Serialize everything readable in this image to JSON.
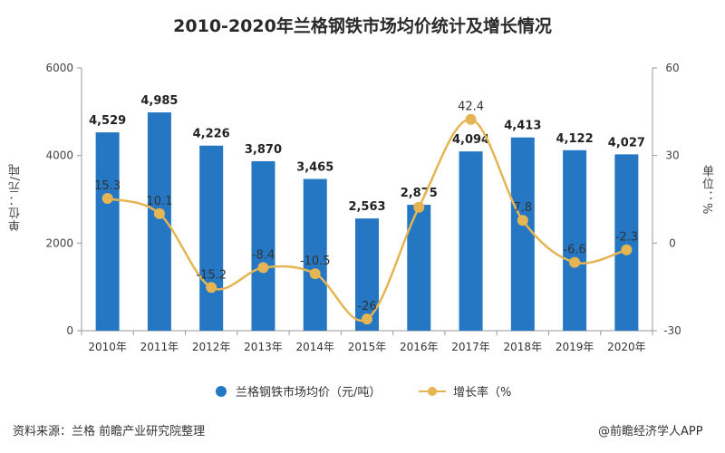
{
  "title": "2010-2020年兰格钢铁市场均价统计及增长情况",
  "ylabel_left": "单位：元/吨",
  "ylabel_right": "单位：%",
  "legend": {
    "bar_label": "兰格钢铁市场均价（元/吨）",
    "line_label": "增长率（%"
  },
  "source": "资料来源：兰格 前瞻产业研究院整理",
  "brand": "@前瞻经济学人APP",
  "colors": {
    "bar": "#2577c4",
    "line": "#e4b552",
    "marker": "#e4b552"
  },
  "chart_data": {
    "type": "bar",
    "categories": [
      "2010年",
      "2011年",
      "2012年",
      "2013年",
      "2014年",
      "2015年",
      "2016年",
      "2017年",
      "2018年",
      "2019年",
      "2020年"
    ],
    "series": [
      {
        "name": "兰格钢铁市场均价（元/吨）",
        "type": "bar",
        "axis": "left",
        "values": [
          4529,
          4985,
          4226,
          3870,
          3465,
          2563,
          2875,
          4094,
          4413,
          4122,
          4027
        ],
        "labels": [
          "4,529",
          "4,985",
          "4,226",
          "3,870",
          "3,465",
          "2,563",
          "2,875",
          "4,094",
          "4,413",
          "4,122",
          "4,027"
        ]
      },
      {
        "name": "增长率（%",
        "type": "line",
        "axis": "right",
        "values": [
          15.3,
          10.1,
          -15.2,
          -8.4,
          -10.5,
          -26,
          12.3,
          42.4,
          7.8,
          -6.6,
          -2.3
        ],
        "labels": [
          "15.3",
          "10.1",
          "-15.2",
          "-8.4",
          "-10.5",
          "-26",
          "",
          "42.4",
          "7.8",
          "-6.6",
          "-2.3"
        ]
      }
    ],
    "ylim_left": [
      0,
      6000
    ],
    "yticks_left": [
      0,
      2000,
      4000,
      6000
    ],
    "yticks_left_labels": [
      "0",
      "2000",
      "4000",
      "6000"
    ],
    "ylim_right": [
      -30,
      60
    ],
    "yticks_right": [
      -30,
      0,
      30,
      60
    ],
    "yticks_right_labels": [
      "-30",
      "0",
      "30",
      "60"
    ],
    "grid": false,
    "legend_position": "bottom"
  }
}
